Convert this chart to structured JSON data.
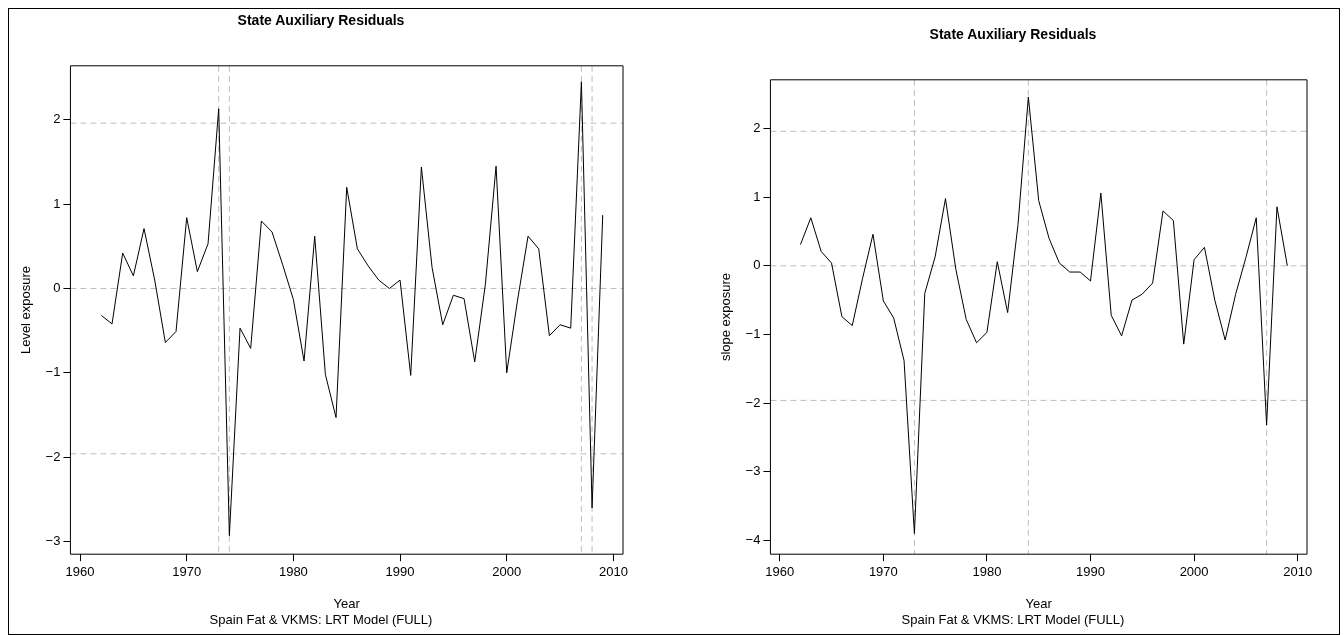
{
  "chart_data": [
    {
      "type": "line",
      "title": "State Auxiliary Residuals",
      "subtitle": "Spain Fat & VKMS: LRT Model (FULL)",
      "xlabel": "Year",
      "ylabel": "Level exposure",
      "x": [
        1962,
        1963,
        1964,
        1965,
        1966,
        1967,
        1968,
        1969,
        1970,
        1971,
        1972,
        1973,
        1974,
        1975,
        1976,
        1977,
        1978,
        1979,
        1980,
        1981,
        1982,
        1983,
        1984,
        1985,
        1986,
        1987,
        1988,
        1989,
        1990,
        1991,
        1992,
        1993,
        1994,
        1995,
        1996,
        1997,
        1998,
        1999,
        2000,
        2001,
        2002,
        2003,
        2004,
        2005,
        2006,
        2007,
        2008,
        2009
      ],
      "series": [
        {
          "color": "#000000",
          "values": [
            -0.32,
            -0.42,
            0.42,
            0.15,
            0.71,
            0.1,
            -0.64,
            -0.51,
            0.84,
            0.2,
            0.53,
            2.13,
            -2.93,
            -0.47,
            -0.71,
            0.8,
            0.67,
            0.28,
            -0.13,
            -0.86,
            0.62,
            -1.02,
            -1.53,
            1.2,
            0.47,
            0.27,
            0.1,
            0.0,
            0.1,
            -1.03,
            1.44,
            0.25,
            -0.43,
            -0.08,
            -0.12,
            -0.87,
            0.05,
            1.45,
            -1.0,
            -0.15,
            0.62,
            0.47,
            -0.56,
            -0.43,
            -0.47,
            2.45,
            -2.6,
            0.87
          ]
        }
      ],
      "xlim": [
        1959.1,
        2010.9
      ],
      "xticks": [
        1960,
        1970,
        1980,
        1990,
        2000,
        2010
      ],
      "ylim": [
        -3.15,
        2.64
      ],
      "yticks": [
        -3,
        -2,
        -1,
        0,
        1,
        2
      ],
      "ref_lines": [
        {
          "axis": "y",
          "value": 1.96,
          "color": "#bebebe",
          "line_style": "dashed"
        },
        {
          "axis": "y",
          "value": 0,
          "color": "#bebebe",
          "line_style": "dashed"
        },
        {
          "axis": "y",
          "value": -1.96,
          "color": "#bebebe",
          "line_style": "dashed"
        },
        {
          "axis": "x",
          "value": 1973,
          "color": "#bebebe",
          "line_style": "dashed"
        },
        {
          "axis": "x",
          "value": 1974,
          "color": "#bebebe",
          "line_style": "dashed"
        },
        {
          "axis": "x",
          "value": 2007,
          "color": "#bebebe",
          "line_style": "dashed"
        },
        {
          "axis": "x",
          "value": 2008,
          "color": "#bebebe",
          "line_style": "dashed"
        }
      ],
      "marker": "none",
      "line_style": "solid"
    },
    {
      "type": "line",
      "title": "State Auxiliary Residuals",
      "subtitle": "Spain Fat & VKMS: LRT Model (FULL)",
      "xlabel": "Year",
      "ylabel": "slope exposure",
      "x": [
        1962,
        1963,
        1964,
        1965,
        1966,
        1967,
        1968,
        1969,
        1970,
        1971,
        1972,
        1973,
        1974,
        1975,
        1976,
        1977,
        1978,
        1979,
        1980,
        1981,
        1982,
        1983,
        1984,
        1985,
        1986,
        1987,
        1988,
        1989,
        1990,
        1991,
        1992,
        1993,
        1994,
        1995,
        1996,
        1997,
        1998,
        1999,
        2000,
        2001,
        2002,
        2003,
        2004,
        2005,
        2006,
        2007,
        2008,
        2009
      ],
      "series": [
        {
          "color": "#000000",
          "values": [
            0.31,
            0.7,
            0.21,
            0.04,
            -0.74,
            -0.87,
            -0.18,
            0.46,
            -0.51,
            -0.76,
            -1.38,
            -3.9,
            -0.4,
            0.13,
            0.98,
            -0.05,
            -0.78,
            -1.12,
            -0.97,
            0.06,
            -0.68,
            0.6,
            2.46,
            0.95,
            0.4,
            0.04,
            -0.09,
            -0.09,
            -0.22,
            1.06,
            -0.72,
            -1.02,
            -0.5,
            -0.41,
            -0.25,
            0.8,
            0.66,
            -1.14,
            0.09,
            0.27,
            -0.5,
            -1.08,
            -0.42,
            0.12,
            0.7,
            -2.32,
            0.86,
            0.0
          ]
        }
      ],
      "xlim": [
        1959.1,
        2010.9
      ],
      "xticks": [
        1960,
        1970,
        1980,
        1990,
        2000,
        2010
      ],
      "ylim": [
        -4.2,
        2.71
      ],
      "yticks": [
        -4,
        -3,
        -2,
        -1,
        0,
        1,
        2
      ],
      "ref_lines": [
        {
          "axis": "y",
          "value": 1.96,
          "color": "#bebebe",
          "line_style": "dashed"
        },
        {
          "axis": "y",
          "value": 0,
          "color": "#bebebe",
          "line_style": "dashed"
        },
        {
          "axis": "y",
          "value": -1.96,
          "color": "#bebebe",
          "line_style": "dashed"
        },
        {
          "axis": "x",
          "value": 1973,
          "color": "#bebebe",
          "line_style": "dashed"
        },
        {
          "axis": "x",
          "value": 1984,
          "color": "#bebebe",
          "line_style": "dashed"
        },
        {
          "axis": "x",
          "value": 2007,
          "color": "#bebebe",
          "line_style": "dashed"
        }
      ],
      "marker": "none",
      "line_style": "solid"
    }
  ]
}
